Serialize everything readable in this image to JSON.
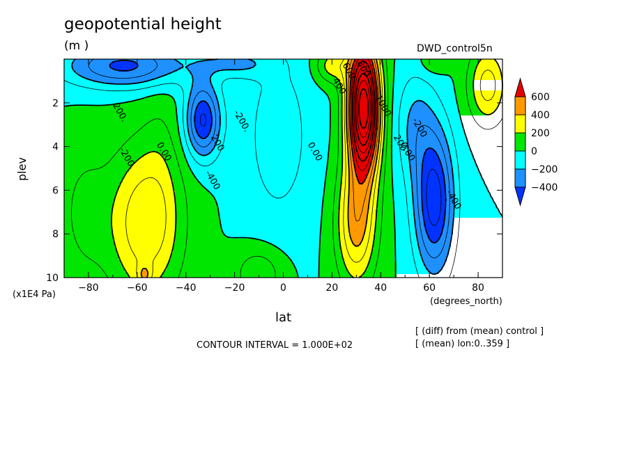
{
  "chart_data": {
    "type": "heatmap",
    "title": "geopotential height",
    "units": "(m )",
    "dataset": "DWD_control5n",
    "xlabel": "lat",
    "ylabel": "plev",
    "x_units": "(degrees_north)",
    "y_units": "(x1E4 Pa)",
    "xlim": [
      -90,
      90
    ],
    "ylim": [
      10,
      0
    ],
    "x_ticks": [
      -80,
      -60,
      -40,
      -20,
      0,
      20,
      40,
      60,
      80
    ],
    "x_tick_labels": [
      "−80",
      "−60",
      "−40",
      "−20",
      "0",
      "20",
      "40",
      "60",
      "80"
    ],
    "y_ticks": [
      2,
      4,
      6,
      8,
      10
    ],
    "y_tick_labels": [
      "2",
      "4",
      "6",
      "8",
      "10"
    ],
    "contour_interval": "CONTOUR INTERVAL = 1.000E+02",
    "notes": [
      "[ (diff) from (mean) control ]",
      "[ (mean) lon:0..359 ]"
    ],
    "colorbar": {
      "labels": [
        "600",
        "400",
        "200",
        "0",
        "−200",
        "−400"
      ],
      "colors": [
        "#e60000",
        "#ff9900",
        "#ffff00",
        "#00e600",
        "#00ffff",
        "#1e90ff",
        "#0033ff"
      ]
    },
    "contour_labels": [
      {
        "text": "200",
        "x": -28,
        "y": 3.9
      },
      {
        "text": "-200.",
        "x": -18,
        "y": 2.9
      },
      {
        "text": "-200.",
        "x": -65,
        "y": 4.6
      },
      {
        "text": "0.00",
        "x": -50,
        "y": 4.3
      },
      {
        "text": "200.",
        "x": -68,
        "y": 2.5
      },
      {
        "text": "-400",
        "x": -30,
        "y": 5.6
      },
      {
        "text": "0.00",
        "x": 12,
        "y": 4.3
      },
      {
        "text": "400",
        "x": 22,
        "y": 1.3
      },
      {
        "text": "600",
        "x": 26,
        "y": 0.6
      },
      {
        "text": "800",
        "x": 32,
        "y": 0.5
      },
      {
        "text": "1000",
        "x": 40,
        "y": 2.2
      },
      {
        "text": "200",
        "x": 47,
        "y": 3.9
      },
      {
        "text": "0.00",
        "x": 50,
        "y": 4.3
      },
      {
        "text": "-200",
        "x": 55,
        "y": 3.2
      },
      {
        "text": "-400",
        "x": 69,
        "y": 6.5
      }
    ],
    "field_blobs": [
      {
        "x": -57,
        "y": 7.5,
        "sx": 15,
        "sy": 3.5,
        "amp": 380
      },
      {
        "x": -57,
        "y": 9.9,
        "sx": 3,
        "sy": 0.5,
        "amp": 200
      },
      {
        "x": -82,
        "y": 7,
        "sx": 10,
        "sy": 3,
        "amp": 120
      },
      {
        "x": -33,
        "y": 2.8,
        "sx": 7,
        "sy": 1.7,
        "amp": -520
      },
      {
        "x": -65,
        "y": 0.3,
        "sx": 25,
        "sy": 1.0,
        "amp": -430
      },
      {
        "x": -20,
        "y": 0.2,
        "sx": 14,
        "sy": 0.6,
        "amp": -200
      },
      {
        "x": -2,
        "y": 3.5,
        "sx": 15,
        "sy": 4.5,
        "amp": -150
      },
      {
        "x": -50,
        "y": 4.3,
        "sx": 8,
        "sy": 4,
        "amp": 60
      },
      {
        "x": -10,
        "y": 9.8,
        "sx": 10,
        "sy": 1.2,
        "amp": 190
      },
      {
        "x": 33,
        "y": 2.2,
        "sx": 6.5,
        "sy": 3.0,
        "amp": 1300
      },
      {
        "x": 30,
        "y": 7.5,
        "sx": 8,
        "sy": 2.8,
        "amp": 450
      },
      {
        "x": 20,
        "y": 0.3,
        "sx": 7,
        "sy": 0.8,
        "amp": 260
      },
      {
        "x": 62,
        "y": 6.5,
        "sx": 8,
        "sy": 3.3,
        "amp": -560
      },
      {
        "x": 54,
        "y": 3.0,
        "sx": 8,
        "sy": 2.5,
        "amp": -200
      },
      {
        "x": 84,
        "y": 1.2,
        "sx": 8,
        "sy": 1.8,
        "amp": 350
      },
      {
        "x": 62,
        "y": 0.1,
        "sx": 6,
        "sy": 0.6,
        "amp": 120
      }
    ]
  }
}
